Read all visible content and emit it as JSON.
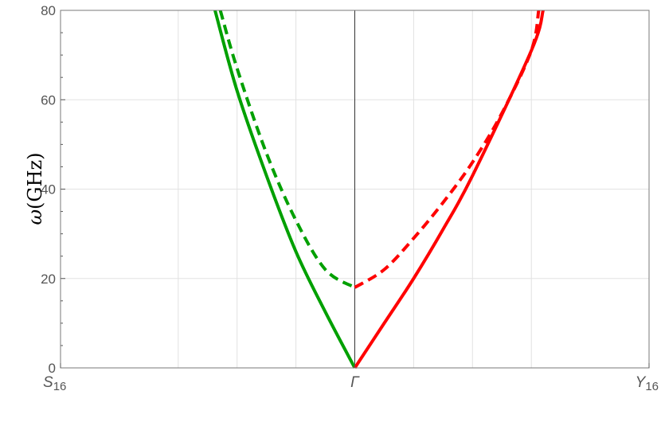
{
  "chart_data": {
    "type": "line",
    "title": "",
    "xlabel": "",
    "ylabel_sym": "ω",
    "ylabel_unit": "(GHz)",
    "xlim": [
      -1,
      1
    ],
    "ylim": [
      0,
      80
    ],
    "grid": true,
    "xticks": [
      {
        "pos": -1,
        "label": "S",
        "sub": "16"
      },
      {
        "pos": 0,
        "label": "Γ",
        "sub": ""
      },
      {
        "pos": 1,
        "label": "Y",
        "sub": "16"
      }
    ],
    "yticks": [
      0,
      20,
      40,
      60,
      80
    ],
    "x_grid": [
      -0.6,
      -0.4,
      -0.2,
      0.2,
      0.4,
      0.6
    ],
    "series": [
      {
        "color": "#00a000",
        "dash": "solid",
        "x": [
          -0.475,
          -0.4,
          -0.3,
          -0.2,
          -0.1,
          0
        ],
        "y": [
          80,
          62,
          43,
          26,
          12.5,
          0
        ]
      },
      {
        "color": "#00a000",
        "dash": "dashed",
        "x": [
          -0.457,
          -0.4,
          -0.3,
          -0.2,
          -0.1,
          0
        ],
        "y": [
          80,
          67,
          48,
          33,
          22,
          18
        ]
      },
      {
        "color": "#ff0000",
        "dash": "solid",
        "x": [
          0,
          0.1,
          0.2,
          0.3,
          0.4,
          0.6,
          0.64
        ],
        "y": [
          0,
          10,
          20,
          31,
          43,
          71,
          80
        ]
      },
      {
        "color": "#ff0000",
        "dash": "dashed",
        "x": [
          0,
          0.1,
          0.2,
          0.3,
          0.4,
          0.5,
          0.6,
          0.625
        ],
        "y": [
          18,
          22,
          29,
          37,
          46,
          57,
          71,
          80
        ]
      }
    ]
  }
}
